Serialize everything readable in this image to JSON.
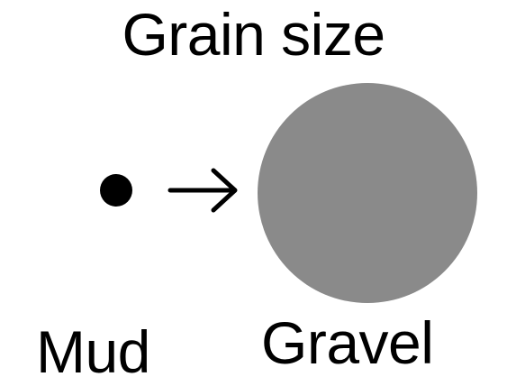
{
  "title": "Grain size",
  "labels": {
    "small": "Mud",
    "large": "Gravel"
  },
  "colors": {
    "small_grain": "#000000",
    "large_grain": "#8a8a8a",
    "arrow": "#000000"
  },
  "icons": {
    "arrow": "right-arrow-icon"
  }
}
